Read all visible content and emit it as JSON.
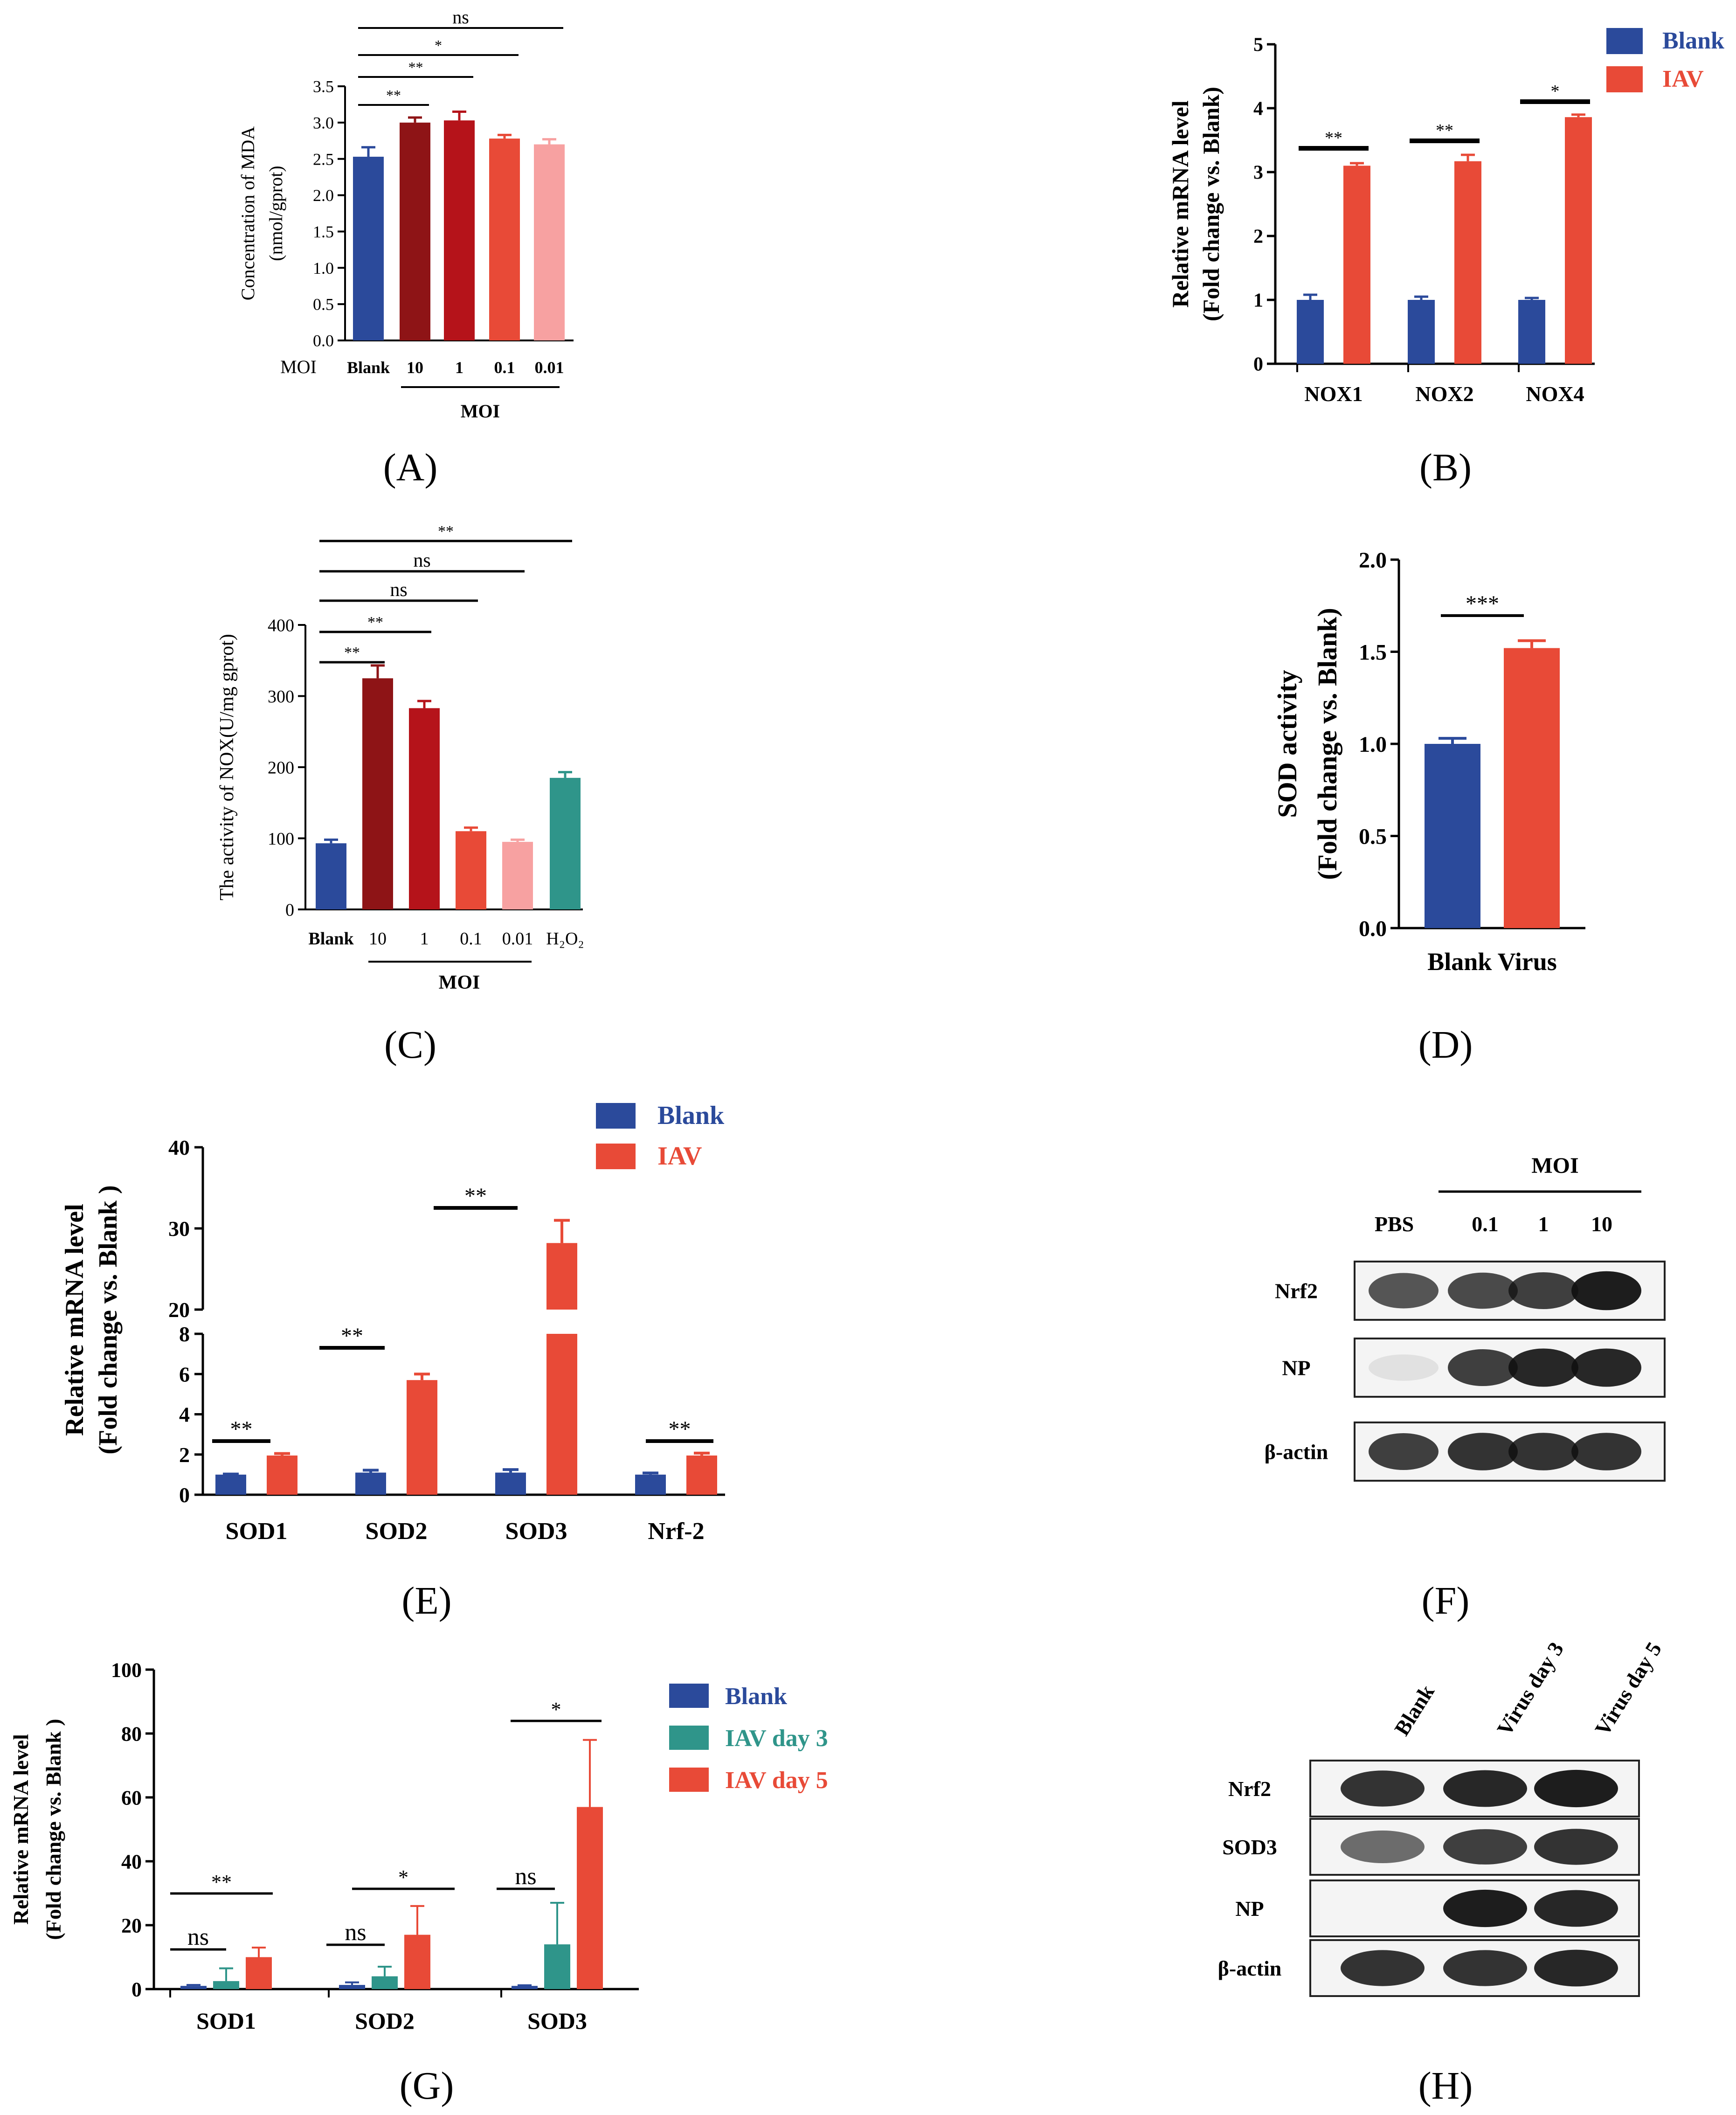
{
  "colors": {
    "blank": "#2b4a9b",
    "iav": "#e84a37",
    "dark_red": "#8e1416",
    "red": "#b5131a",
    "pink": "#f7a1a1",
    "teal": "#2f958a",
    "blot_band": "#111111",
    "blot_bg": "#f4f4f4"
  },
  "panels": {
    "A": "(A)",
    "B": "(B)",
    "C": "(C)",
    "D": "(D)",
    "E": "(E)",
    "F": "(F)",
    "G": "(G)",
    "H": "(H)"
  },
  "chart_data": [
    {
      "id": "A",
      "type": "bar",
      "ylabel": [
        "Concentration of MDA",
        "(nmol/gprot)"
      ],
      "ylim": [
        0,
        3.5
      ],
      "yticks": [
        "0.0",
        "0.5",
        "1.0",
        "1.5",
        "2.0",
        "2.5",
        "3.0",
        "3.5"
      ],
      "axis_prefix": "MOI",
      "categories": [
        "Blank",
        "10",
        "1",
        "0.1",
        "0.01"
      ],
      "values": [
        2.53,
        3.0,
        3.03,
        2.78,
        2.7
      ],
      "errors": [
        0.13,
        0.07,
        0.12,
        0.05,
        0.07
      ],
      "bar_colors": [
        "blank",
        "dark_red",
        "red",
        "iav",
        "pink"
      ],
      "group_label": "MOI",
      "significance": [
        {
          "from": 0,
          "to": 1,
          "label": "**"
        },
        {
          "from": 0,
          "to": 2,
          "label": "**"
        },
        {
          "from": 0,
          "to": 3,
          "label": "*"
        },
        {
          "from": 0,
          "to": 4,
          "label": "ns"
        }
      ]
    },
    {
      "id": "B",
      "type": "bar",
      "ylabel": [
        "Relative mRNA level",
        "(Fold change vs. Blank)"
      ],
      "ylim": [
        0,
        5
      ],
      "yticks": [
        "0",
        "1",
        "2",
        "3",
        "4",
        "5"
      ],
      "categories": [
        "NOX1",
        "NOX2",
        "NOX4"
      ],
      "series": [
        {
          "name": "Blank",
          "color": "blank",
          "values": [
            1.0,
            1.0,
            1.0
          ],
          "errors": [
            0.08,
            0.05,
            0.03
          ]
        },
        {
          "name": "IAV",
          "color": "iav",
          "values": [
            3.1,
            3.17,
            3.86
          ],
          "errors": [
            0.04,
            0.1,
            0.04
          ]
        }
      ],
      "significance": [
        "**",
        "**",
        "*"
      ]
    },
    {
      "id": "C",
      "type": "bar",
      "ylabel": [
        "The activity of NOX(U/mg gprot)"
      ],
      "ylim": [
        0,
        400
      ],
      "yticks": [
        "0",
        "100",
        "200",
        "300",
        "400"
      ],
      "categories": [
        "Blank",
        "10",
        "1",
        "0.1",
        "0.01",
        "H₂O₂"
      ],
      "values": [
        93,
        325,
        283,
        110,
        95,
        185
      ],
      "errors": [
        5,
        18,
        10,
        5,
        3,
        8
      ],
      "bar_colors": [
        "blank",
        "dark_red",
        "red",
        "iav",
        "pink",
        "teal"
      ],
      "group_label": "MOI",
      "significance": [
        {
          "from": 0,
          "to": 1,
          "label": "**"
        },
        {
          "from": 0,
          "to": 2,
          "label": "**"
        },
        {
          "from": 0,
          "to": 3,
          "label": "ns"
        },
        {
          "from": 0,
          "to": 4,
          "label": "ns"
        },
        {
          "from": 0,
          "to": 5,
          "label": "**"
        }
      ]
    },
    {
      "id": "D",
      "type": "bar",
      "ylabel": [
        "SOD activity",
        "(Fold change vs. Blank)"
      ],
      "ylim": [
        0,
        2.0
      ],
      "yticks": [
        "0.0",
        "0.5",
        "1.0",
        "1.5",
        "2.0"
      ],
      "categories": [
        "Blank",
        "Virus"
      ],
      "values": [
        1.0,
        1.52
      ],
      "errors": [
        0.03,
        0.04
      ],
      "bar_colors": [
        "blank",
        "iav"
      ],
      "significance": [
        {
          "from": 0,
          "to": 1,
          "label": "***"
        }
      ]
    },
    {
      "id": "E",
      "type": "bar",
      "ylabel": [
        "Relative  mRNA level",
        "(Fold change vs. Blank )"
      ],
      "ylim": [
        0,
        40
      ],
      "axis_break": [
        8,
        20
      ],
      "yticks": [
        "0",
        "2",
        "4",
        "6",
        "8",
        "20",
        "30",
        "40"
      ],
      "categories": [
        "SOD1",
        "SOD2",
        "SOD3",
        "Nrf-2"
      ],
      "series": [
        {
          "name": "Blank",
          "color": "blank",
          "values": [
            1.0,
            1.1,
            1.1,
            1.0
          ],
          "errors": [
            0.03,
            0.12,
            0.15,
            0.08
          ]
        },
        {
          "name": "IAV",
          "color": "iav",
          "values": [
            1.95,
            5.7,
            28.2,
            1.95
          ],
          "errors": [
            0.1,
            0.3,
            2.8,
            0.12
          ]
        }
      ],
      "significance": [
        "**",
        "**",
        "**",
        "**"
      ]
    },
    {
      "id": "G",
      "type": "bar",
      "ylabel": [
        "Relative  mRNA level",
        "(Fold change vs. Blank )"
      ],
      "ylim": [
        0,
        100
      ],
      "yticks": [
        "0",
        "20",
        "40",
        "60",
        "80",
        "100"
      ],
      "categories": [
        "SOD1",
        "SOD2",
        "SOD3"
      ],
      "series": [
        {
          "name": "Blank",
          "color": "blank",
          "values": [
            1.0,
            1.3,
            1.0
          ],
          "errors": [
            0.3,
            0.8,
            0.2
          ]
        },
        {
          "name": "IAV day 3",
          "color": "teal",
          "values": [
            2.5,
            4.0,
            14.0
          ],
          "errors": [
            4.0,
            3.0,
            13.0
          ]
        },
        {
          "name": "IAV day 5",
          "color": "iav",
          "values": [
            10.0,
            17.0,
            57.0
          ],
          "errors": [
            3.0,
            9.0,
            21.0
          ]
        }
      ],
      "significance": [
        {
          "pair": "blank-day3",
          "labels": [
            "ns",
            "ns",
            "ns"
          ]
        },
        {
          "pair": "blank-day5",
          "labels": [
            "**",
            "*",
            "*"
          ]
        }
      ]
    }
  ],
  "blot_F": {
    "moi_label": "MOI",
    "lanes": [
      "PBS",
      "0.1",
      "1",
      "10"
    ],
    "rows": [
      {
        "label": "Nrf2",
        "intensity": [
          0.7,
          0.75,
          0.8,
          0.95
        ]
      },
      {
        "label": "NP",
        "intensity": [
          0.05,
          0.8,
          0.9,
          0.9
        ]
      },
      {
        "label": "β-actin",
        "intensity": [
          0.8,
          0.85,
          0.85,
          0.85
        ]
      }
    ]
  },
  "blot_H": {
    "lanes": [
      "Blank",
      "Virus day 3",
      "Virus day 5"
    ],
    "rows": [
      {
        "label": "Nrf2",
        "intensity": [
          0.85,
          0.9,
          0.95
        ]
      },
      {
        "label": "SOD3",
        "intensity": [
          0.6,
          0.8,
          0.85
        ]
      },
      {
        "label": "NP",
        "intensity": [
          0.0,
          0.95,
          0.9
        ]
      },
      {
        "label": "β-actin",
        "intensity": [
          0.85,
          0.85,
          0.9
        ]
      }
    ]
  }
}
